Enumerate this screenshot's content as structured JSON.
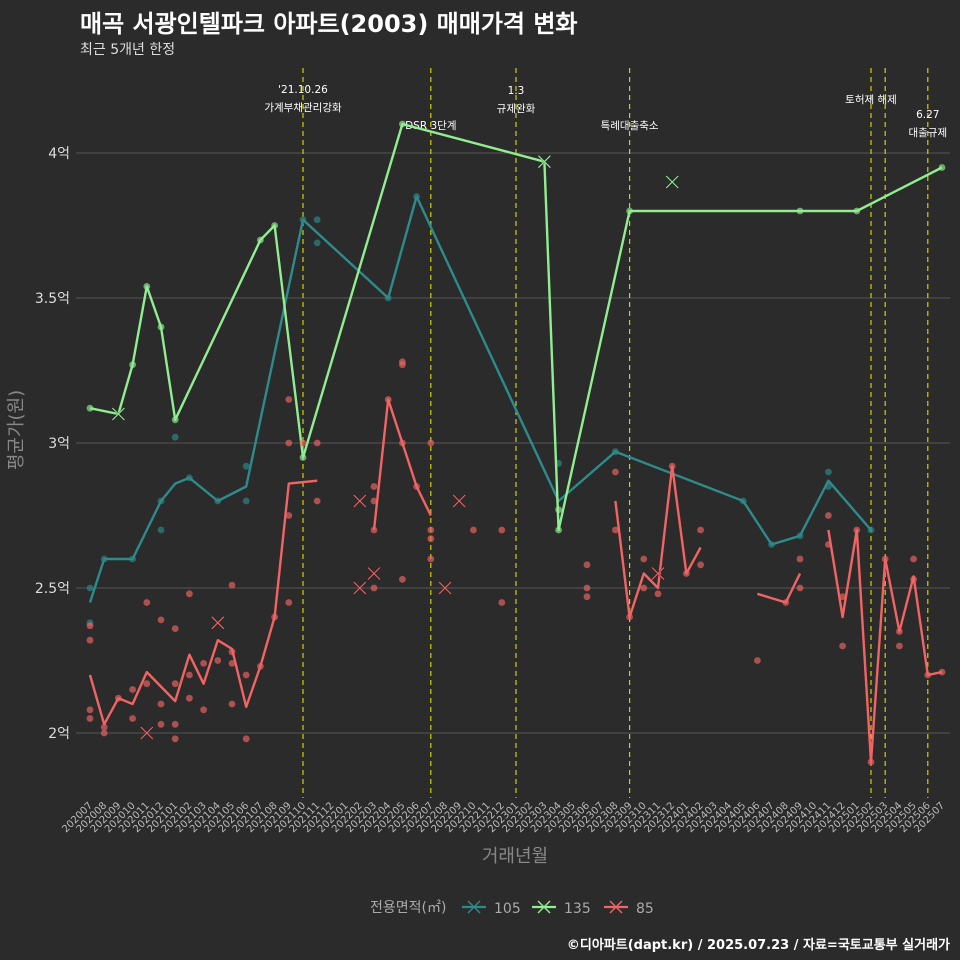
{
  "header": {
    "title": "매곡 서광인텔파크 아파트(2003) 매매가격 변화",
    "subtitle": "최근 5개년 한정"
  },
  "caption": "©디아파트(dapt.kr) / 2025.07.23 / 자료=국토교통부 실거래가",
  "colors": {
    "background": "#2b2b2b",
    "s105": "#2e8b8b",
    "s135": "#90ee90",
    "s85": "#f26464",
    "event_line": "#d4d000",
    "grid": "#555555"
  },
  "chart_data": {
    "type": "line",
    "xlabel": "거래년월",
    "ylabel": "평균가(원)",
    "ylim": [
      1.8,
      4.35
    ],
    "y_ticks": [
      {
        "v": 2,
        "label": "2억"
      },
      {
        "v": 2.5,
        "label": "2.5억"
      },
      {
        "v": 3,
        "label": "3억"
      },
      {
        "v": 3.5,
        "label": "3.5억"
      },
      {
        "v": 4,
        "label": "4억"
      }
    ],
    "categories": [
      "202007",
      "202008",
      "202009",
      "202010",
      "202011",
      "202012",
      "202101",
      "202102",
      "202103",
      "202104",
      "202105",
      "202106",
      "202107",
      "202108",
      "202109",
      "202110",
      "202111",
      "202112",
      "202201",
      "202202",
      "202203",
      "202204",
      "202205",
      "202206",
      "202207",
      "202208",
      "202209",
      "202210",
      "202211",
      "202212",
      "202301",
      "202302",
      "202303",
      "202304",
      "202305",
      "202306",
      "202307",
      "202308",
      "202309",
      "202310",
      "202311",
      "202312",
      "202401",
      "202402",
      "202403",
      "202404",
      "202405",
      "202406",
      "202407",
      "202408",
      "202409",
      "202410",
      "202411",
      "202412",
      "202501",
      "202502",
      "202503",
      "202504",
      "202505",
      "202506",
      "202507"
    ],
    "legend_title": "전용면적(㎡)",
    "series": [
      {
        "name": "105",
        "color": "#2e8b8b",
        "line": [
          [
            0,
            2.45
          ],
          [
            1,
            2.6
          ],
          [
            3,
            2.6
          ],
          [
            5,
            2.8
          ],
          [
            6,
            2.86
          ],
          [
            7,
            2.88
          ],
          [
            9,
            2.8
          ],
          [
            11,
            2.85
          ],
          [
            15,
            3.77
          ],
          [
            21,
            3.5
          ],
          [
            23,
            3.85
          ],
          [
            33,
            2.8
          ],
          [
            37,
            2.97
          ],
          [
            46,
            2.8
          ],
          [
            48,
            2.65
          ],
          [
            50,
            2.68
          ],
          [
            52,
            2.87
          ],
          [
            55,
            2.7
          ]
        ],
        "points": [
          [
            0,
            2.5
          ],
          [
            0,
            2.38
          ],
          [
            1,
            2.6
          ],
          [
            3,
            2.6
          ],
          [
            5,
            2.8
          ],
          [
            5,
            2.7
          ],
          [
            6,
            3.02
          ],
          [
            7,
            2.88
          ],
          [
            9,
            2.8
          ],
          [
            11,
            2.8
          ],
          [
            11,
            2.92
          ],
          [
            15,
            3.77
          ],
          [
            16,
            3.77
          ],
          [
            16,
            3.69
          ],
          [
            21,
            3.5
          ],
          [
            23,
            3.85
          ],
          [
            33,
            2.93
          ],
          [
            37,
            2.97
          ],
          [
            46,
            2.8
          ],
          [
            48,
            2.65
          ],
          [
            50,
            2.68
          ],
          [
            52,
            2.9
          ],
          [
            52,
            2.85
          ],
          [
            55,
            2.7
          ]
        ],
        "crosses": []
      },
      {
        "name": "135",
        "color": "#90ee90",
        "line": [
          [
            0,
            3.12
          ],
          [
            2,
            3.1
          ],
          [
            3,
            3.27
          ],
          [
            4,
            3.54
          ],
          [
            5,
            3.4
          ],
          [
            6,
            3.08
          ],
          [
            12,
            3.7
          ],
          [
            13,
            3.75
          ],
          [
            15,
            2.95
          ],
          [
            22,
            4.1
          ],
          [
            32,
            3.97
          ],
          [
            33,
            2.7
          ],
          [
            38,
            3.8
          ],
          [
            50,
            3.8
          ],
          [
            54,
            3.8
          ],
          [
            60,
            3.95
          ]
        ],
        "points": [
          [
            0,
            3.12
          ],
          [
            3,
            3.27
          ],
          [
            4,
            3.54
          ],
          [
            5,
            3.4
          ],
          [
            6,
            3.08
          ],
          [
            12,
            3.7
          ],
          [
            13,
            3.75
          ],
          [
            15,
            2.95
          ],
          [
            22,
            4.1
          ],
          [
            33,
            2.77
          ],
          [
            33,
            2.7
          ],
          [
            38,
            3.8
          ],
          [
            50,
            3.8
          ],
          [
            54,
            3.8
          ],
          [
            60,
            3.95
          ]
        ],
        "crosses": [
          [
            2,
            3.1
          ],
          [
            32,
            3.97
          ],
          [
            41,
            3.9
          ]
        ]
      },
      {
        "name": "85",
        "color": "#f26464",
        "line_segments": [
          [
            [
              0,
              2.2
            ],
            [
              1,
              2.03
            ],
            [
              2,
              2.12
            ],
            [
              3,
              2.1
            ],
            [
              4,
              2.21
            ],
            [
              6,
              2.11
            ],
            [
              7,
              2.27
            ],
            [
              8,
              2.17
            ],
            [
              9,
              2.32
            ],
            [
              10,
              2.29
            ],
            [
              11,
              2.09
            ],
            [
              12,
              2.23
            ],
            [
              13,
              2.4
            ],
            [
              14,
              2.86
            ],
            [
              16,
              2.87
            ]
          ],
          [
            [
              20,
              2.7
            ],
            [
              21,
              3.15
            ],
            [
              22,
              3.0
            ],
            [
              23,
              2.85
            ],
            [
              24,
              2.75
            ]
          ],
          [
            [
              37,
              2.8
            ],
            [
              38,
              2.4
            ],
            [
              39,
              2.55
            ],
            [
              40,
              2.5
            ],
            [
              41,
              2.92
            ],
            [
              42,
              2.55
            ],
            [
              43,
              2.64
            ]
          ],
          [
            [
              47,
              2.48
            ],
            [
              49,
              2.45
            ],
            [
              50,
              2.55
            ]
          ],
          [
            [
              52,
              2.7
            ],
            [
              53,
              2.4
            ],
            [
              54,
              2.7
            ],
            [
              55,
              1.9
            ],
            [
              56,
              2.6
            ],
            [
              57,
              2.35
            ],
            [
              58,
              2.54
            ],
            [
              59,
              2.2
            ],
            [
              60,
              2.21
            ]
          ]
        ],
        "points": [
          [
            0,
            2.08
          ],
          [
            0,
            2.05
          ],
          [
            0,
            2.37
          ],
          [
            0,
            2.32
          ],
          [
            1,
            2.0
          ],
          [
            1,
            2.02
          ],
          [
            2,
            2.12
          ],
          [
            3,
            2.15
          ],
          [
            3,
            2.05
          ],
          [
            4,
            2.45
          ],
          [
            4,
            2.17
          ],
          [
            5,
            2.39
          ],
          [
            5,
            2.1
          ],
          [
            5,
            2.03
          ],
          [
            6,
            2.36
          ],
          [
            6,
            2.17
          ],
          [
            6,
            2.03
          ],
          [
            6,
            1.98
          ],
          [
            7,
            2.48
          ],
          [
            7,
            2.2
          ],
          [
            7,
            2.12
          ],
          [
            8,
            2.24
          ],
          [
            8,
            2.08
          ],
          [
            9,
            2.25
          ],
          [
            10,
            2.51
          ],
          [
            10,
            2.28
          ],
          [
            10,
            2.24
          ],
          [
            10,
            2.1
          ],
          [
            11,
            2.2
          ],
          [
            11,
            1.98
          ],
          [
            12,
            2.23
          ],
          [
            13,
            2.4
          ],
          [
            14,
            3.15
          ],
          [
            14,
            3.0
          ],
          [
            14,
            2.75
          ],
          [
            14,
            2.45
          ],
          [
            15,
            3.0
          ],
          [
            16,
            3.0
          ],
          [
            16,
            2.8
          ],
          [
            20,
            2.85
          ],
          [
            20,
            2.8
          ],
          [
            20,
            2.7
          ],
          [
            20,
            2.5
          ],
          [
            21,
            3.15
          ],
          [
            22,
            3.28
          ],
          [
            22,
            3.27
          ],
          [
            22,
            3.0
          ],
          [
            22,
            2.53
          ],
          [
            23,
            2.85
          ],
          [
            24,
            3.0
          ],
          [
            24,
            2.7
          ],
          [
            24,
            2.67
          ],
          [
            24,
            2.6
          ],
          [
            27,
            2.7
          ],
          [
            29,
            2.7
          ],
          [
            29,
            2.45
          ],
          [
            35,
            2.58
          ],
          [
            35,
            2.5
          ],
          [
            35,
            2.47
          ],
          [
            37,
            2.9
          ],
          [
            37,
            2.7
          ],
          [
            38,
            2.4
          ],
          [
            39,
            2.6
          ],
          [
            39,
            2.5
          ],
          [
            40,
            2.48
          ],
          [
            41,
            2.92
          ],
          [
            42,
            2.55
          ],
          [
            43,
            2.7
          ],
          [
            43,
            2.58
          ],
          [
            47,
            2.25
          ],
          [
            49,
            2.45
          ],
          [
            50,
            2.6
          ],
          [
            50,
            2.5
          ],
          [
            52,
            2.75
          ],
          [
            52,
            2.65
          ],
          [
            53,
            2.47
          ],
          [
            53,
            2.3
          ],
          [
            54,
            2.7
          ],
          [
            55,
            1.9
          ],
          [
            56,
            2.6
          ],
          [
            57,
            2.35
          ],
          [
            57,
            2.3
          ],
          [
            58,
            2.6
          ],
          [
            58,
            2.53
          ],
          [
            59,
            2.2
          ],
          [
            60,
            2.21
          ]
        ],
        "crosses": [
          [
            4,
            2.0
          ],
          [
            9,
            2.38
          ],
          [
            19,
            2.8
          ],
          [
            19,
            2.5
          ],
          [
            20,
            2.55
          ],
          [
            25,
            2.5
          ],
          [
            26,
            2.8
          ],
          [
            40,
            2.55
          ]
        ]
      }
    ],
    "events": [
      {
        "at": 15,
        "lines": [
          "'21.10.26",
          "가계부채관리강화"
        ]
      },
      {
        "at": 24,
        "lines": [
          "DSR 3단계"
        ]
      },
      {
        "at": 30,
        "lines": [
          "1.3",
          "규제완화"
        ]
      },
      {
        "at": 38,
        "lines": [
          "특례대출축소"
        ]
      },
      {
        "at": 55,
        "lines": [
          "토허제 해제"
        ]
      },
      {
        "at": 56,
        "lines": []
      },
      {
        "at": 59,
        "lines": [
          "6.27",
          "대출규제"
        ]
      }
    ]
  }
}
